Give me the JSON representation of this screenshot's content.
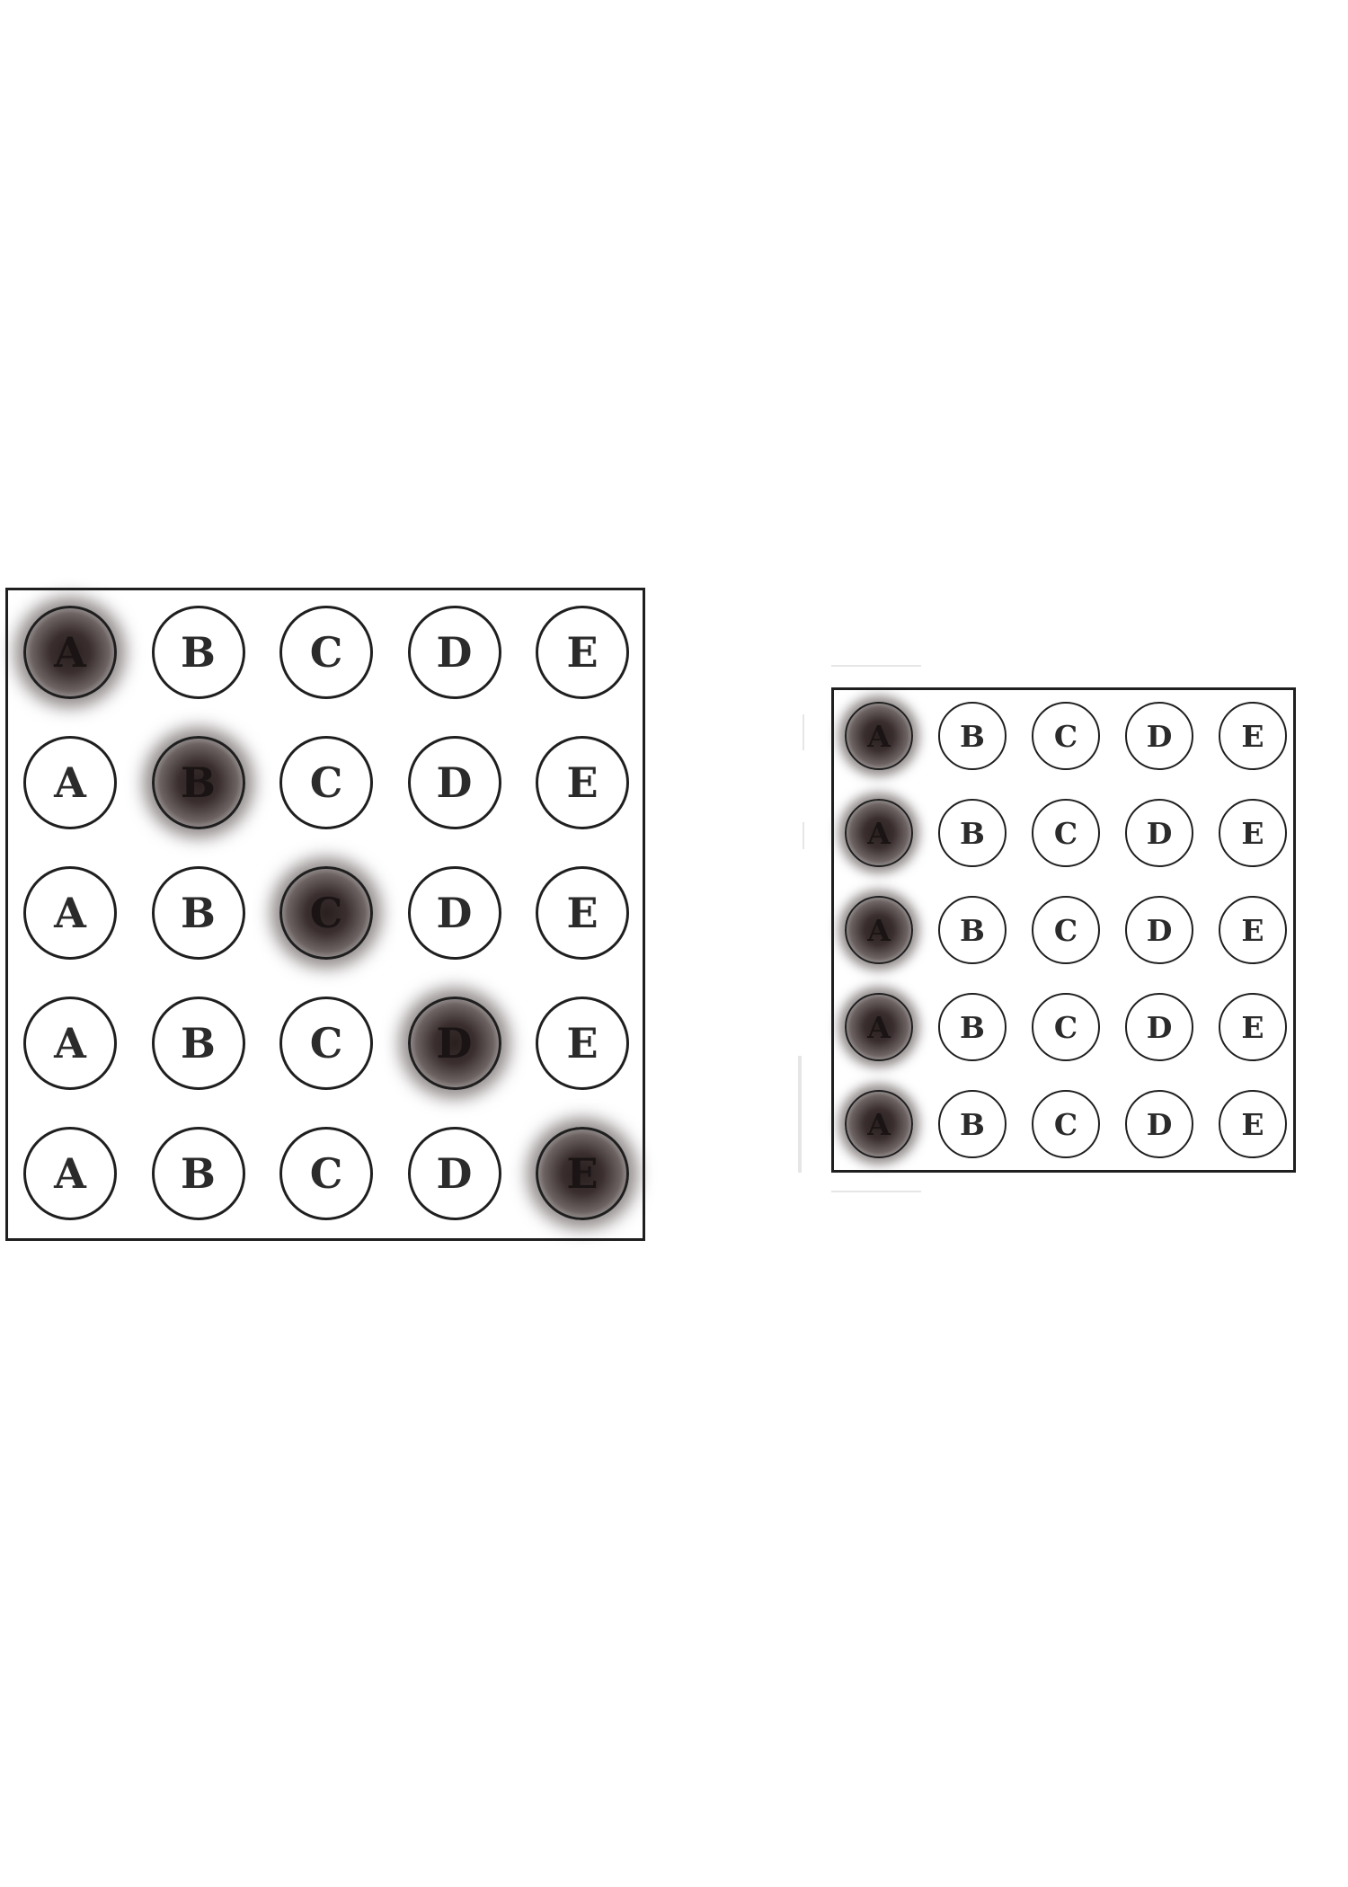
{
  "left_sheet": {
    "options": [
      "A",
      "B",
      "C",
      "D",
      "E"
    ],
    "rows": [
      {
        "filled": "A"
      },
      {
        "filled": "B"
      },
      {
        "filled": "C"
      },
      {
        "filled": "D"
      },
      {
        "filled": "E"
      }
    ]
  },
  "right_sheet": {
    "options": [
      "A",
      "B",
      "C",
      "D",
      "E"
    ],
    "rows": [
      {
        "filled": "A"
      },
      {
        "filled": "A"
      },
      {
        "filled": "A"
      },
      {
        "filled": "A"
      },
      {
        "filled": "A"
      }
    ]
  },
  "colors": {
    "border": "#1f1f1f",
    "letter": "#2b2b2b",
    "mark": "#2a2020"
  }
}
